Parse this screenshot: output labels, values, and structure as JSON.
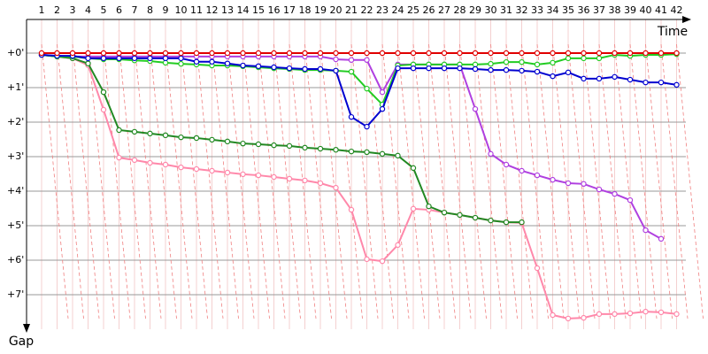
{
  "chart_data": {
    "type": "line",
    "x_label": "Time",
    "y_label": "Gap",
    "categories": [
      "1",
      "2",
      "3",
      "4",
      "5",
      "6",
      "7",
      "8",
      "9",
      "10",
      "11",
      "12",
      "13",
      "14",
      "15",
      "16",
      "17",
      "18",
      "19",
      "20",
      "21",
      "22",
      "23",
      "24",
      "25",
      "26",
      "27",
      "28",
      "29",
      "30",
      "31",
      "32",
      "33",
      "34",
      "35",
      "36",
      "37",
      "38",
      "39",
      "40",
      "41",
      "42"
    ],
    "ylim": [
      -1,
      8
    ],
    "yticks": [
      {
        "value": 0,
        "label": "+0'"
      },
      {
        "value": 1,
        "label": "+1'"
      },
      {
        "value": 2,
        "label": "+2'"
      },
      {
        "value": 3,
        "label": "+3'"
      },
      {
        "value": 4,
        "label": "+4'"
      },
      {
        "value": 5,
        "label": "+5'"
      },
      {
        "value": 6,
        "label": "+6'"
      },
      {
        "value": 7,
        "label": "+7'"
      }
    ],
    "grid": true,
    "series": [
      {
        "color": "#ff88aa",
        "values": [
          0.05,
          0.1,
          0.15,
          0.35,
          1.64,
          3.03,
          3.1,
          3.18,
          3.23,
          3.31,
          3.36,
          3.41,
          3.46,
          3.51,
          3.54,
          3.59,
          3.64,
          3.69,
          3.77,
          3.9,
          4.54,
          5.97,
          6.03,
          5.56,
          4.51,
          4.54,
          4.62,
          4.69,
          4.77,
          4.85,
          4.9,
          4.92,
          6.23,
          7.59,
          7.69,
          7.67,
          7.56,
          7.56,
          7.54,
          7.49,
          7.51,
          7.56
        ]
      },
      {
        "color": "#228822",
        "values": [
          0.05,
          0.1,
          0.15,
          0.3,
          1.13,
          2.23,
          2.28,
          2.33,
          2.38,
          2.44,
          2.46,
          2.51,
          2.56,
          2.62,
          2.64,
          2.67,
          2.69,
          2.74,
          2.77,
          2.8,
          2.85,
          2.87,
          2.92,
          2.97,
          3.33,
          4.44,
          4.62,
          4.69,
          4.77,
          4.85,
          4.9,
          4.9,
          null,
          null,
          null,
          null,
          null,
          null,
          null,
          null,
          null,
          null
        ]
      },
      {
        "color": "#b040e0",
        "values": [
          0.05,
          0.08,
          0.1,
          0.1,
          0.1,
          0.1,
          0.1,
          0.1,
          0.1,
          0.1,
          0.1,
          0.1,
          0.1,
          0.1,
          0.1,
          0.1,
          0.1,
          0.1,
          0.1,
          0.18,
          0.2,
          0.2,
          1.13,
          0.33,
          0.33,
          0.33,
          0.33,
          0.33,
          1.62,
          2.92,
          3.23,
          3.41,
          3.54,
          3.67,
          3.77,
          3.79,
          3.95,
          4.08,
          4.26,
          5.13,
          5.38,
          null
        ]
      },
      {
        "color": "#22cc22",
        "values": [
          0.05,
          0.1,
          0.1,
          0.15,
          0.18,
          0.18,
          0.21,
          0.23,
          0.28,
          0.31,
          0.33,
          0.36,
          0.36,
          0.38,
          0.41,
          0.44,
          0.46,
          0.49,
          0.49,
          0.51,
          0.54,
          1.03,
          1.49,
          0.36,
          0.33,
          0.33,
          0.33,
          0.33,
          0.33,
          0.31,
          0.26,
          0.26,
          0.33,
          0.28,
          0.15,
          0.15,
          0.15,
          0.05,
          0.08,
          0.05,
          0.05,
          0.03
        ]
      },
      {
        "color": "#0000d0",
        "values": [
          0.05,
          0.08,
          0.08,
          0.15,
          0.15,
          0.15,
          0.15,
          0.15,
          0.15,
          0.15,
          0.25,
          0.25,
          0.3,
          0.36,
          0.38,
          0.41,
          0.44,
          0.46,
          0.46,
          0.51,
          1.85,
          2.13,
          1.62,
          0.44,
          0.44,
          0.44,
          0.44,
          0.44,
          0.46,
          0.49,
          0.49,
          0.51,
          0.54,
          0.67,
          0.56,
          0.74,
          0.74,
          0.69,
          0.77,
          0.85,
          0.85,
          0.92
        ]
      },
      {
        "color": "#e00000",
        "values": [
          0,
          0,
          0,
          0,
          0,
          0,
          0,
          0,
          0,
          0,
          0,
          0,
          0,
          0,
          0,
          0,
          0,
          0,
          0,
          0,
          0,
          0,
          0,
          0,
          0,
          0,
          0,
          0,
          0,
          0,
          0,
          0,
          0,
          0,
          0,
          0,
          0,
          0,
          0,
          0,
          0,
          0
        ]
      }
    ]
  }
}
